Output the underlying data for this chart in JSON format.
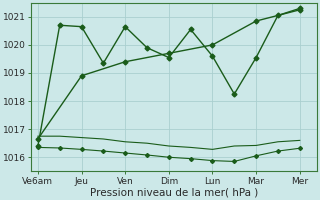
{
  "bg_color": "#cce8e8",
  "grid_color": "#aacfcf",
  "line_color": "#1a5c1a",
  "xlabel": "Pression niveau de la mer( hPa )",
  "xlabel_fontsize": 7.5,
  "tick_labels": [
    "Ve6am",
    "Jeu",
    "Ven",
    "Dim",
    "Lun",
    "Mar",
    "Mer"
  ],
  "tick_positions": [
    0,
    2,
    4,
    6,
    8,
    10,
    12
  ],
  "xlim": [
    -0.3,
    12.8
  ],
  "ylim": [
    1015.5,
    1021.5
  ],
  "yticks": [
    1016,
    1017,
    1018,
    1019,
    1020,
    1021
  ],
  "series": [
    {
      "x": [
        0,
        1,
        2,
        3,
        4,
        5,
        6,
        7,
        8,
        9,
        10,
        11,
        12
      ],
      "y": [
        1016.4,
        1020.7,
        1020.65,
        1019.35,
        1020.65,
        1019.9,
        1019.55,
        1020.55,
        1019.6,
        1018.25,
        1019.55,
        1021.05,
        1021.3
      ],
      "style": "-",
      "marker": "D",
      "marker_size": 2.5,
      "linewidth": 1.0
    },
    {
      "x": [
        0,
        2,
        4,
        6,
        8,
        10,
        12
      ],
      "y": [
        1016.65,
        1018.9,
        1019.4,
        1019.7,
        1020.0,
        1020.85,
        1021.25
      ],
      "style": "-",
      "marker": "D",
      "marker_size": 2.5,
      "linewidth": 1.0
    },
    {
      "x": [
        0,
        1,
        2,
        3,
        4,
        5,
        6,
        7,
        8,
        9,
        10,
        11,
        12
      ],
      "y": [
        1016.75,
        1016.75,
        1016.7,
        1016.65,
        1016.55,
        1016.5,
        1016.4,
        1016.35,
        1016.28,
        1016.4,
        1016.42,
        1016.55,
        1016.6
      ],
      "style": "-",
      "marker": null,
      "marker_size": 0,
      "linewidth": 0.8
    },
    {
      "x": [
        0,
        1,
        2,
        3,
        4,
        5,
        6,
        7,
        8,
        9,
        10,
        11,
        12
      ],
      "y": [
        1016.35,
        1016.33,
        1016.28,
        1016.22,
        1016.15,
        1016.08,
        1016.0,
        1015.95,
        1015.88,
        1015.85,
        1016.05,
        1016.22,
        1016.32
      ],
      "style": "-",
      "marker": "D",
      "marker_size": 2.0,
      "linewidth": 0.8
    }
  ]
}
